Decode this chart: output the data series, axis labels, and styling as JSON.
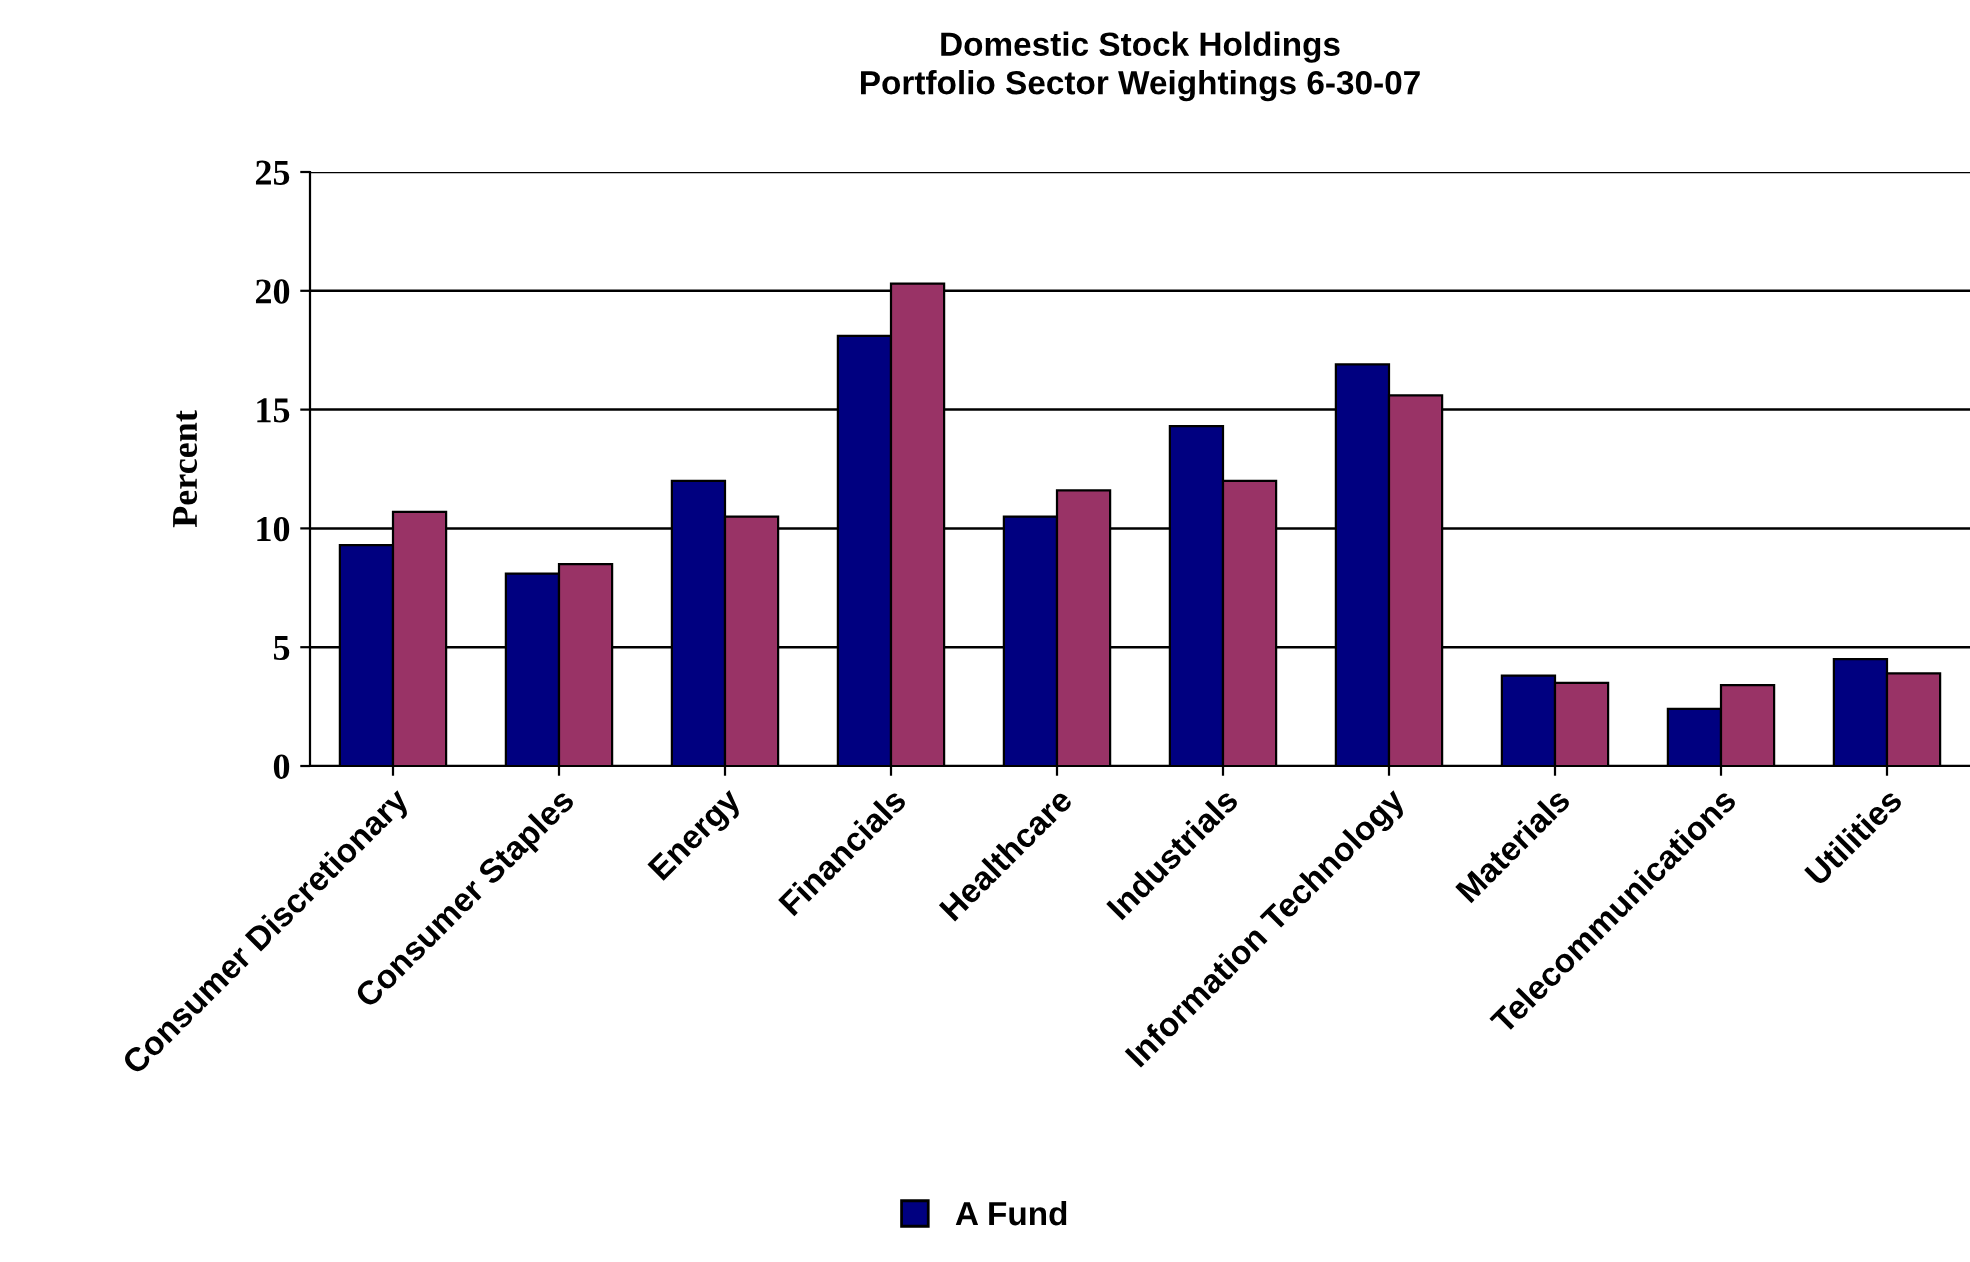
{
  "chart_data": {
    "type": "bar",
    "title": "Domestic Stock Holdings\nPortfolio Sector Weightings 6-30-07",
    "ylabel": "Percent",
    "categories": [
      "Consumer Discretionary",
      "Consumer Staples",
      "Energy",
      "Financials",
      "Healthcare",
      "Industrials",
      "Information Technology",
      "Materials",
      "Telecommunications",
      "Utilities"
    ],
    "series": [
      {
        "name": "A Fund",
        "color": "#000080",
        "values": [
          9.3,
          8.1,
          12.0,
          18.1,
          10.5,
          14.3,
          16.9,
          3.8,
          2.4,
          4.5
        ]
      },
      {
        "color": "#993366",
        "values": [
          10.7,
          8.5,
          10.5,
          20.3,
          11.6,
          12.0,
          15.6,
          3.5,
          3.4,
          3.9
        ]
      }
    ],
    "ylim": [
      0,
      25
    ],
    "yticks": [
      0,
      5,
      10,
      15,
      20,
      25
    ],
    "grid": "y",
    "legend": "bottom"
  }
}
